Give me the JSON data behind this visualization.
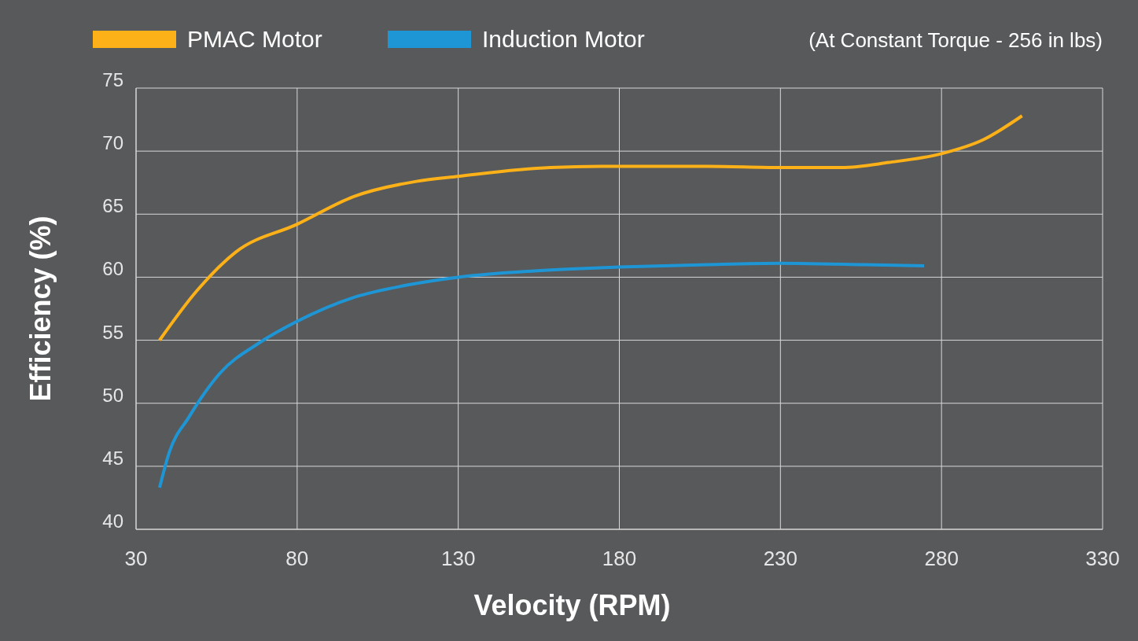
{
  "chart_data": {
    "type": "line",
    "xlabel": "Velocity (RPM)",
    "ylabel": "Efficiency (%)",
    "annotations": [
      "(At Constant Torque - 256 in lbs)"
    ],
    "xlim": [
      30,
      330
    ],
    "xticks": [
      30,
      80,
      130,
      180,
      230,
      280,
      330
    ],
    "ylim": [
      40,
      75
    ],
    "yticks": [
      40,
      45,
      50,
      55,
      60,
      65,
      70,
      75
    ],
    "grid": true,
    "legend": "top left",
    "line_style": "solid",
    "marker": "none",
    "series": [
      {
        "name": "PMAC Motor",
        "color": "#fbb117",
        "x": [
          37.3,
          48.8,
          61,
          80,
          97.6,
          117,
          130,
          158.6,
          180,
          207.5,
          230,
          249,
          263.6,
          280,
          292.9,
          305
        ],
        "values": [
          55,
          58.9,
          62,
          64.2,
          66.4,
          67.6,
          68,
          68.7,
          68.8,
          68.8,
          68.7,
          68.7,
          69.1,
          69.8,
          70.9,
          72.8
        ]
      },
      {
        "name": "Induction Motor",
        "color": "#1e96d6",
        "x": [
          37.3,
          40.3,
          46.4,
          56.1,
          68.3,
          80,
          97.6,
          114.7,
          130,
          153.7,
          180,
          207.5,
          230,
          256,
          274.6
        ],
        "values": [
          43.3,
          46.1,
          48.9,
          52.4,
          54.8,
          56.5,
          58.4,
          59.4,
          60,
          60.5,
          60.8,
          61,
          61.1,
          61,
          60.9
        ]
      }
    ]
  }
}
